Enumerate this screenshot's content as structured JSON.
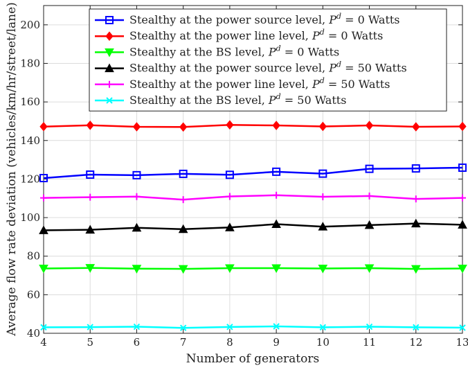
{
  "chart_data": {
    "type": "line",
    "title": "",
    "xlabel": "Number of generators",
    "ylabel": "Average flow rate deviation (vehicles/km/hr/street/lane)",
    "xlim": [
      4,
      13
    ],
    "ylim": [
      40,
      210
    ],
    "x": [
      4,
      5,
      6,
      7,
      8,
      9,
      10,
      11,
      12,
      13
    ],
    "xticks": [
      "4",
      "5",
      "6",
      "7",
      "8",
      "9",
      "10",
      "11",
      "12",
      "13"
    ],
    "yticks": [
      "40",
      "60",
      "80",
      "100",
      "120",
      "140",
      "160",
      "180",
      "200"
    ],
    "grid": true,
    "legend_position": "top-right",
    "series": [
      {
        "name": "Stealthy at the power source level, P^d = 0 Watts",
        "legend_text": "Stealthy at the power source level, ",
        "legend_value": " = 0 Watts",
        "color": "#0000ff",
        "marker": "square",
        "values": [
          120.5,
          122.3,
          122.0,
          122.7,
          122.2,
          123.8,
          122.8,
          125.3,
          125.5,
          125.9
        ]
      },
      {
        "name": "Stealthy at the power line level, P^d = 0 Watts",
        "legend_text": "Stealthy at the power line level, ",
        "legend_value": " = 0 Watts",
        "color": "#ff0000",
        "marker": "diamond",
        "values": [
          147.2,
          147.9,
          147.1,
          147.0,
          148.1,
          147.8,
          147.3,
          147.8,
          147.1,
          147.3
        ]
      },
      {
        "name": "Stealthy at the BS level, P^d = 0 Watts",
        "legend_text": "Stealthy at the BS level, ",
        "legend_value": " = 0 Watts",
        "color": "#00ff00",
        "marker": "triangle-down",
        "values": [
          73.6,
          73.9,
          73.5,
          73.4,
          73.8,
          73.8,
          73.6,
          73.8,
          73.4,
          73.6
        ]
      },
      {
        "name": "Stealthy at the power source level, P^d = 50 Watts",
        "legend_text": "Stealthy at the power source level, ",
        "legend_value": " = 50 Watts",
        "color": "#000000",
        "marker": "triangle-up",
        "values": [
          93.4,
          93.7,
          94.7,
          94.0,
          94.9,
          96.6,
          95.3,
          96.1,
          96.9,
          96.3
        ]
      },
      {
        "name": "Stealthy at the power line level, P^d = 50 Watts",
        "legend_text": "Stealthy at the power line level, ",
        "legend_value": " = 50 Watts",
        "color": "#ff00ff",
        "marker": "plus",
        "values": [
          110.2,
          110.6,
          110.9,
          109.3,
          111.0,
          111.6,
          110.8,
          111.2,
          109.7,
          110.2
        ]
      },
      {
        "name": "Stealthy at the BS level, P^d = 50 Watts",
        "legend_text": "Stealthy at the BS level, ",
        "legend_value": " = 50 Watts",
        "color": "#00ffff",
        "marker": "x",
        "values": [
          43.1,
          43.2,
          43.4,
          42.8,
          43.3,
          43.6,
          43.1,
          43.4,
          43.1,
          42.9
        ]
      }
    ]
  }
}
